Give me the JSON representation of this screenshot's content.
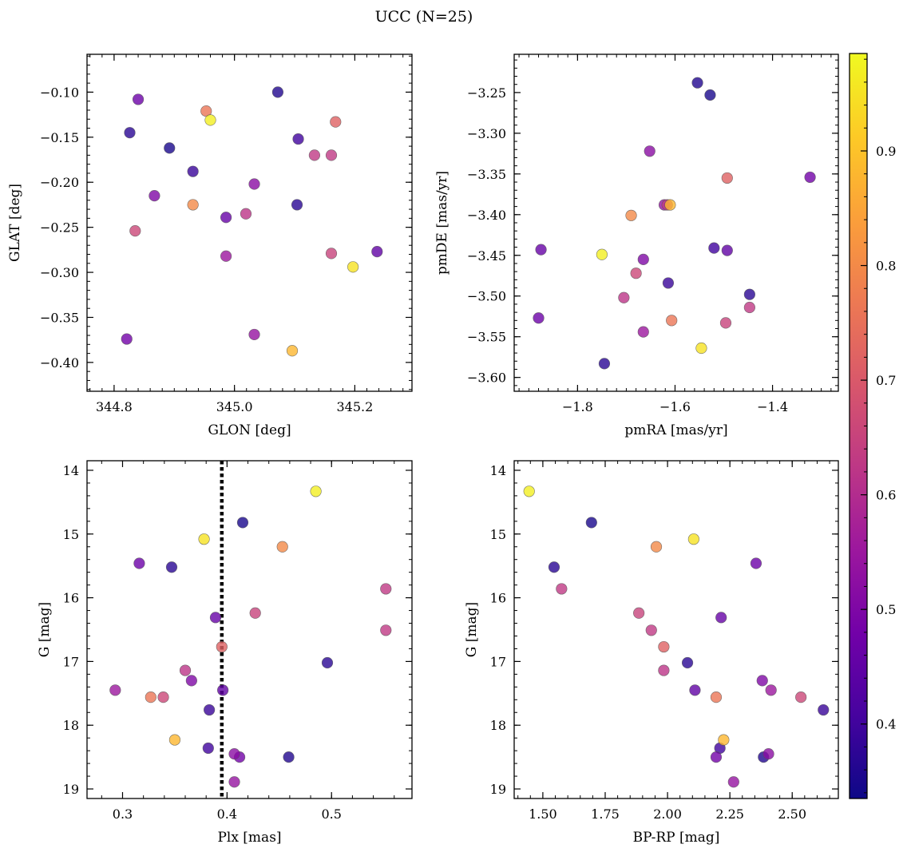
{
  "figure": {
    "title": "UCC (N=25)",
    "colormap": "plasma",
    "colormap_stops": [
      "#0d0887",
      "#46039f",
      "#7201a8",
      "#9c179e",
      "#bd3786",
      "#d8576b",
      "#ed7953",
      "#fb9f3a",
      "#fdca26",
      "#f0f921"
    ],
    "point_alpha": 0.8,
    "marker_edge_color": "#555555"
  },
  "colorbar": {
    "range": [
      0.335,
      0.985
    ],
    "ticks": [
      0.4,
      0.5,
      0.6,
      0.7,
      0.8,
      0.9
    ],
    "tick_labels": [
      "0.4",
      "0.5",
      "0.6",
      "0.7",
      "0.8",
      "0.9"
    ]
  },
  "members": [
    {
      "glon": 344.84,
      "glat": -0.108,
      "pmra": -1.88,
      "pmde": -3.527,
      "plx": 0.316,
      "g": 15.46,
      "bprp": 2.355,
      "prob": 0.47
    },
    {
      "glon": 344.826,
      "glat": -0.145,
      "pmra": -1.745,
      "pmde": -3.583,
      "plx": 0.347,
      "g": 15.52,
      "bprp": 1.545,
      "prob": 0.37
    },
    {
      "glon": 344.953,
      "glat": -0.121,
      "pmra": -1.607,
      "pmde": -3.53,
      "plx": 0.327,
      "g": 17.56,
      "bprp": 2.195,
      "prob": 0.76
    },
    {
      "glon": 344.96,
      "glat": -0.131,
      "pmra": -1.75,
      "pmde": -3.449,
      "plx": 0.485,
      "g": 14.33,
      "bprp": 1.445,
      "prob": 0.97
    },
    {
      "glon": 344.892,
      "glat": -0.162,
      "pmra": -1.528,
      "pmde": -3.253,
      "plx": 0.415,
      "g": 14.82,
      "bprp": 1.695,
      "prob": 0.35
    },
    {
      "glon": 344.931,
      "glat": -0.188,
      "pmra": -1.614,
      "pmde": -3.484,
      "plx": 0.383,
      "g": 17.76,
      "bprp": 2.625,
      "prob": 0.39
    },
    {
      "glon": 344.867,
      "glat": -0.215,
      "pmra": -1.665,
      "pmde": -3.455,
      "plx": 0.366,
      "g": 17.3,
      "bprp": 2.38,
      "prob": 0.5
    },
    {
      "glon": 344.931,
      "glat": -0.225,
      "pmra": -1.69,
      "pmde": -3.401,
      "plx": 0.453,
      "g": 15.2,
      "bprp": 1.955,
      "prob": 0.8
    },
    {
      "glon": 344.835,
      "glat": -0.254,
      "pmra": -1.68,
      "pmde": -3.472,
      "plx": 0.339,
      "g": 17.56,
      "bprp": 2.535,
      "prob": 0.66
    },
    {
      "glon": 344.986,
      "glat": -0.239,
      "pmra": -1.875,
      "pmde": -3.443,
      "plx": 0.389,
      "g": 16.31,
      "bprp": 2.215,
      "prob": 0.46
    },
    {
      "glon": 345.019,
      "glat": -0.235,
      "pmra": -1.705,
      "pmde": -3.502,
      "plx": 0.36,
      "g": 17.14,
      "bprp": 1.985,
      "prob": 0.62
    },
    {
      "glon": 344.986,
      "glat": -0.282,
      "pmra": -1.665,
      "pmde": -3.544,
      "plx": 0.293,
      "g": 17.45,
      "bprp": 2.415,
      "prob": 0.55
    },
    {
      "glon": 345.033,
      "glat": -0.202,
      "pmra": -1.652,
      "pmde": -3.322,
      "plx": 0.407,
      "g": 18.45,
      "bprp": 2.405,
      "prob": 0.52
    },
    {
      "glon": 345.072,
      "glat": -0.1,
      "pmra": -1.554,
      "pmde": -3.238,
      "plx": 0.459,
      "g": 18.5,
      "bprp": 2.385,
      "prob": 0.36
    },
    {
      "glon": 345.106,
      "glat": -0.152,
      "pmra": -1.52,
      "pmde": -3.441,
      "plx": 0.382,
      "g": 18.36,
      "bprp": 2.21,
      "prob": 0.4
    },
    {
      "glon": 345.104,
      "glat": -0.225,
      "pmra": -1.447,
      "pmde": -3.498,
      "plx": 0.496,
      "g": 17.02,
      "bprp": 2.08,
      "prob": 0.37
    },
    {
      "glon": 345.133,
      "glat": -0.17,
      "pmra": -1.447,
      "pmde": -3.514,
      "plx": 0.552,
      "g": 16.51,
      "bprp": 1.935,
      "prob": 0.63
    },
    {
      "glon": 345.161,
      "glat": -0.17,
      "pmra": -1.616,
      "pmde": -3.388,
      "plx": 0.552,
      "g": 15.86,
      "bprp": 1.575,
      "prob": 0.63
    },
    {
      "glon": 345.168,
      "glat": -0.133,
      "pmra": -1.493,
      "pmde": -3.355,
      "plx": 0.395,
      "g": 16.77,
      "bprp": 1.985,
      "prob": 0.72
    },
    {
      "glon": 345.161,
      "glat": -0.279,
      "pmra": -1.496,
      "pmde": -3.533,
      "plx": 0.427,
      "g": 16.24,
      "bprp": 1.885,
      "prob": 0.65
    },
    {
      "glon": 345.237,
      "glat": -0.277,
      "pmra": -1.493,
      "pmde": -3.444,
      "plx": 0.396,
      "g": 17.45,
      "bprp": 2.11,
      "prob": 0.45
    },
    {
      "glon": 345.197,
      "glat": -0.294,
      "pmra": -1.546,
      "pmde": -3.564,
      "plx": 0.378,
      "g": 15.08,
      "bprp": 2.105,
      "prob": 0.95
    },
    {
      "glon": 344.821,
      "glat": -0.374,
      "pmra": -1.323,
      "pmde": -3.354,
      "plx": 0.412,
      "g": 18.5,
      "bprp": 2.195,
      "prob": 0.48
    },
    {
      "glon": 345.033,
      "glat": -0.369,
      "pmra": -1.622,
      "pmde": -3.388,
      "plx": 0.407,
      "g": 18.89,
      "bprp": 2.265,
      "prob": 0.54
    },
    {
      "glon": 345.096,
      "glat": -0.387,
      "pmra": -1.61,
      "pmde": -3.388,
      "plx": 0.35,
      "g": 18.23,
      "bprp": 2.225,
      "prob": 0.88
    }
  ],
  "chart_data": [
    {
      "type": "scatter",
      "panel": "top-left",
      "x_field": "glon",
      "y_field": "glat",
      "xlabel": "GLON [deg]",
      "ylabel": "GLAT [deg]",
      "xlim": [
        344.755,
        345.295
      ],
      "ylim": [
        -0.432,
        -0.058
      ],
      "xticks": [
        344.8,
        345.0,
        345.2
      ],
      "xtick_labels": [
        "344.8",
        "345.0",
        "345.2"
      ],
      "yticks": [
        -0.4,
        -0.35,
        -0.3,
        -0.25,
        -0.2,
        -0.15,
        -0.1
      ],
      "ytick_labels": [
        "−0.40",
        "−0.35",
        "−0.30",
        "−0.25",
        "−0.20",
        "−0.15",
        "−0.10"
      ],
      "xminor": 0.02,
      "yminor": 0.01,
      "invert_y": false
    },
    {
      "type": "scatter",
      "panel": "top-right",
      "x_field": "pmra",
      "y_field": "pmde",
      "xlabel": "pmRA [mas/yr]",
      "ylabel": "pmDE [mas/yr]",
      "xlim": [
        -1.93,
        -1.265
      ],
      "ylim": [
        -3.617,
        -3.203
      ],
      "xticks": [
        -1.8,
        -1.6,
        -1.4
      ],
      "xtick_labels": [
        "−1.8",
        "−1.6",
        "−1.4"
      ],
      "yticks": [
        -3.6,
        -3.55,
        -3.5,
        -3.45,
        -3.4,
        -3.35,
        -3.3,
        -3.25
      ],
      "ytick_labels": [
        "−3.60",
        "−3.55",
        "−3.50",
        "−3.45",
        "−3.40",
        "−3.35",
        "−3.30",
        "−3.25"
      ],
      "xminor": 0.02,
      "yminor": 0.01,
      "invert_y": false
    },
    {
      "type": "scatter",
      "panel": "bottom-left",
      "x_field": "plx",
      "y_field": "g",
      "xlabel": "Plx [mas]",
      "ylabel": "G [mag]",
      "xlim": [
        0.266,
        0.577
      ],
      "ylim": [
        19.15,
        13.85
      ],
      "xticks": [
        0.3,
        0.4,
        0.5
      ],
      "xtick_labels": [
        "0.3",
        "0.4",
        "0.5"
      ],
      "yticks": [
        14,
        15,
        16,
        17,
        18,
        19
      ],
      "ytick_labels": [
        "14",
        "15",
        "16",
        "17",
        "18",
        "19"
      ],
      "xminor": 0.02,
      "yminor": 0.2,
      "invert_y": true,
      "vline": {
        "x": 0.395,
        "style": "dotted"
      }
    },
    {
      "type": "scatter",
      "panel": "bottom-right",
      "x_field": "bprp",
      "y_field": "g",
      "xlabel": "BP-RP [mag]",
      "ylabel": "G [mag]",
      "xlim": [
        1.385,
        2.685
      ],
      "ylim": [
        19.15,
        13.85
      ],
      "xticks": [
        1.5,
        1.75,
        2.0,
        2.25,
        2.5
      ],
      "xtick_labels": [
        "1.50",
        "1.75",
        "2.00",
        "2.25",
        "2.50"
      ],
      "yticks": [
        14,
        15,
        16,
        17,
        18,
        19
      ],
      "ytick_labels": [
        "14",
        "15",
        "16",
        "17",
        "18",
        "19"
      ],
      "xminor": 0.05,
      "yminor": 0.2,
      "invert_y": true
    }
  ]
}
